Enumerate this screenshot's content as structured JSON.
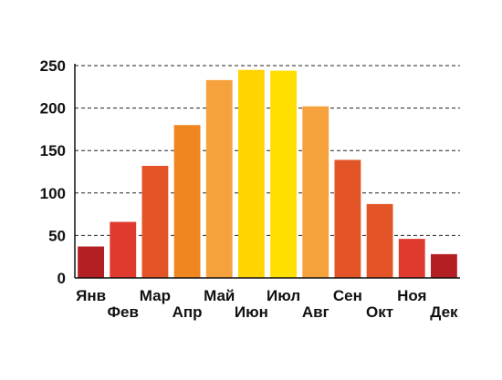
{
  "chart_data": {
    "type": "bar",
    "categories": [
      "Янв",
      "Фев",
      "Мар",
      "Апр",
      "Май",
      "Июн",
      "Июл",
      "Авг",
      "Сен",
      "Окт",
      "Ноя",
      "Дек"
    ],
    "values": [
      37,
      66,
      132,
      180,
      233,
      245,
      244,
      202,
      139,
      87,
      46,
      28
    ],
    "bar_colors": [
      "#b41f24",
      "#e03a2e",
      "#e35527",
      "#ef8620",
      "#f5a13c",
      "#ffd400",
      "#ffdf00",
      "#f5a13c",
      "#e35527",
      "#e35527",
      "#e03a2e",
      "#b41f24"
    ],
    "yticks": [
      "0",
      "50",
      "100",
      "150",
      "200",
      "250"
    ],
    "ylim": [
      0,
      250
    ],
    "title": "",
    "xlabel": "",
    "ylabel": "",
    "grid": true,
    "grid_style": "dashed",
    "legend": "none"
  }
}
